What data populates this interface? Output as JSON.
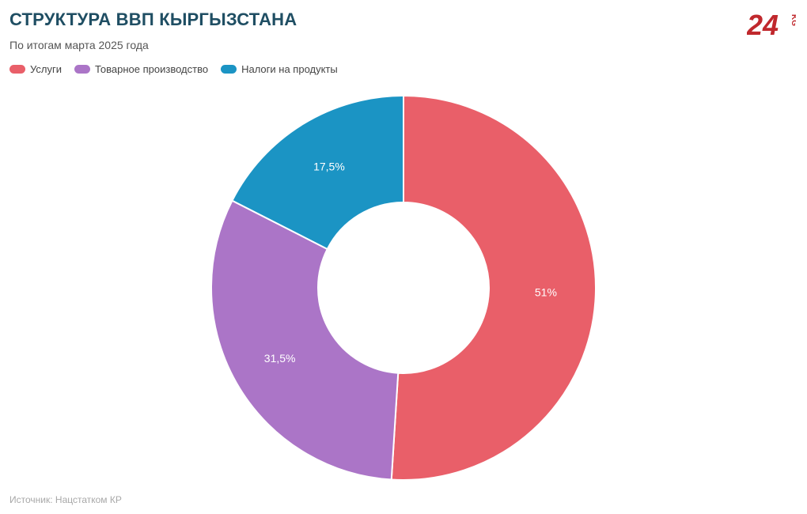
{
  "header": {
    "title": "СТРУКТУРА ВВП КЫРГЫЗСТАНА",
    "subtitle": "По итогам марта 2025 года"
  },
  "logo": {
    "main": "24",
    "suffix": "KG",
    "color": "#c0282d"
  },
  "footer": {
    "source": "Источник: Нацстатком КР"
  },
  "chart_data": {
    "type": "pie",
    "donut": true,
    "legend_position": "top-left",
    "categories": [
      "Услуги",
      "Товарное производство",
      "Налоги на продукты"
    ],
    "values": [
      51,
      31.5,
      17.5
    ],
    "value_labels": [
      "51%",
      "31,5%",
      "17,5%"
    ],
    "colors": [
      "#e95f69",
      "#ab75c7",
      "#1b94c4"
    ]
  }
}
